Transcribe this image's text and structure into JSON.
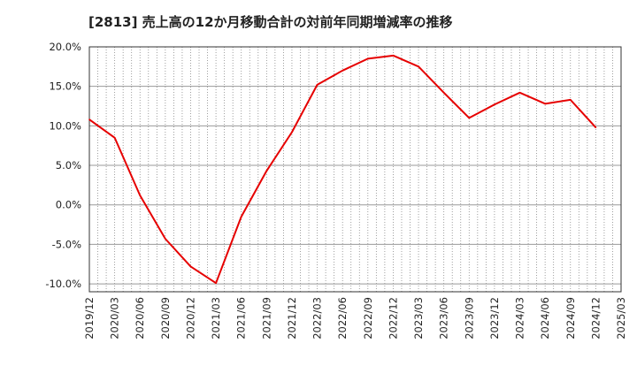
{
  "chart_data": {
    "type": "line",
    "title": "[2813]  売上高の12か月移動合計の対前年同期増減率の推移",
    "xlabel": "",
    "ylabel": "",
    "ylim": [
      -11,
      20
    ],
    "y_ticks": [
      {
        "value": 20,
        "label": "20.0%"
      },
      {
        "value": 15,
        "label": "15.0%"
      },
      {
        "value": 10,
        "label": "10.0%"
      },
      {
        "value": 5,
        "label": "5.0%"
      },
      {
        "value": 0,
        "label": "0.0%"
      },
      {
        "value": -5,
        "label": "-5.0%"
      },
      {
        "value": -10,
        "label": "-10.0%"
      }
    ],
    "x_ticks": [
      "2019/12",
      "2020/03",
      "2020/06",
      "2020/09",
      "2020/12",
      "2021/03",
      "2021/06",
      "2021/09",
      "2021/12",
      "2022/03",
      "2022/06",
      "2022/09",
      "2022/12",
      "2023/03",
      "2023/06",
      "2023/09",
      "2023/12",
      "2024/03",
      "2024/06",
      "2024/09",
      "2024/12",
      "2025/03"
    ],
    "grid": true,
    "series": [
      {
        "name": "対前年同期増減率",
        "color": "#e60000",
        "x": [
          "2019/12",
          "2020/03",
          "2020/06",
          "2020/09",
          "2020/12",
          "2021/03",
          "2021/06",
          "2021/09",
          "2021/12",
          "2022/03",
          "2022/06",
          "2022/09",
          "2022/12",
          "2023/03",
          "2023/06",
          "2023/09",
          "2023/12",
          "2024/03",
          "2024/06",
          "2024/09",
          "2024/12"
        ],
        "values": [
          10.8,
          8.5,
          1.2,
          -4.3,
          -7.8,
          -9.9,
          -1.5,
          4.3,
          9.2,
          15.2,
          17.0,
          18.5,
          18.9,
          17.5,
          14.2,
          11.0,
          12.7,
          14.2,
          12.8,
          13.3,
          9.8
        ]
      }
    ]
  }
}
